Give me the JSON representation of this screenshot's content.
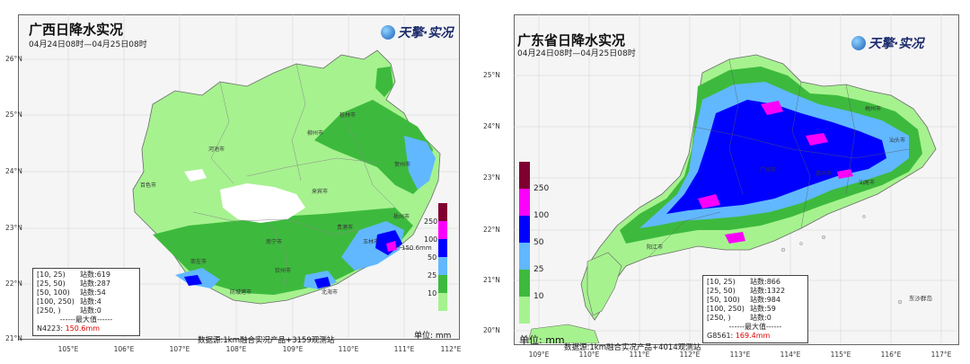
{
  "left": {
    "title": "广西日降水实况",
    "subtitle": "04月24日08时—04月25日08时",
    "logo": "天擎·实况",
    "lat_labels": [
      "26°N",
      "25°N",
      "24°N",
      "23°N",
      "22°N",
      "21°N"
    ],
    "lon_labels": [
      "105°E",
      "106°E",
      "107°E",
      "108°E",
      "109°E",
      "110°E",
      "111°E",
      "112°E"
    ],
    "legend_levels": [
      "10",
      "25",
      "50",
      "100",
      "250"
    ],
    "legend_colors": [
      "#a6f28f",
      "#3dba3d",
      "#61b8ff",
      "#0000ff",
      "#fa00fa",
      "#7f0030"
    ],
    "stats": [
      {
        "range": "[10, 25)",
        "label": "站数:",
        "count": "619"
      },
      {
        "range": "[25, 50)",
        "label": "站数:",
        "count": "287"
      },
      {
        "range": "[50, 100)",
        "label": "站数:",
        "count": "54"
      },
      {
        "range": "[100, 250)",
        "label": "站数:",
        "count": "4"
      },
      {
        "range": "[250, )",
        "label": "站数:",
        "count": "0"
      }
    ],
    "max_label": "最大值",
    "max_station": "N4223:",
    "max_value": "150.6mm",
    "map_peak_label": "150.6mm",
    "source": "数据源:1km融合实况产品+3159观测站",
    "unit": "单位: mm",
    "cities": [
      "河池市",
      "柳州市",
      "桂林市",
      "贺州市",
      "百色市",
      "来宾市",
      "梧州市",
      "贵港市",
      "南宁市",
      "玉林市",
      "崇左市",
      "钦州市",
      "防城港市",
      "北海市"
    ]
  },
  "right": {
    "title": "广东省日降水实况",
    "subtitle": "04月24日08时—04月25日08时",
    "logo": "天擎·实况",
    "lat_labels": [
      "25°N",
      "24°N",
      "23°N",
      "22°N",
      "21°N",
      "20°N"
    ],
    "lon_labels": [
      "109°E",
      "110°E",
      "111°E",
      "112°E",
      "113°E",
      "114°E",
      "115°E",
      "116°E",
      "117°E"
    ],
    "legend_levels": [
      "10",
      "25",
      "50",
      "100",
      "250"
    ],
    "legend_colors": [
      "#a6f28f",
      "#3dba3d",
      "#61b8ff",
      "#0000ff",
      "#fa00fa",
      "#7f0030"
    ],
    "stats": [
      {
        "range": "[10, 25)",
        "label": "站数:",
        "count": "866"
      },
      {
        "range": "[25, 50)",
        "label": "站数:",
        "count": "1322"
      },
      {
        "range": "[50, 100)",
        "label": "站数:",
        "count": "984"
      },
      {
        "range": "[100, 250)",
        "label": "站数:",
        "count": "59"
      },
      {
        "range": "[250, )",
        "label": "站数:",
        "count": "0"
      }
    ],
    "max_label": "最大值",
    "max_station": "G8561:",
    "max_value": "169.4mm",
    "source": "数据源:1km融合实况产品+4014观测站",
    "unit": "单位: mm",
    "island_label": "东沙群岛",
    "cities": [
      "梅州市",
      "汕头市",
      "广州市",
      "惠州市",
      "汕尾市",
      "阳江市"
    ]
  }
}
